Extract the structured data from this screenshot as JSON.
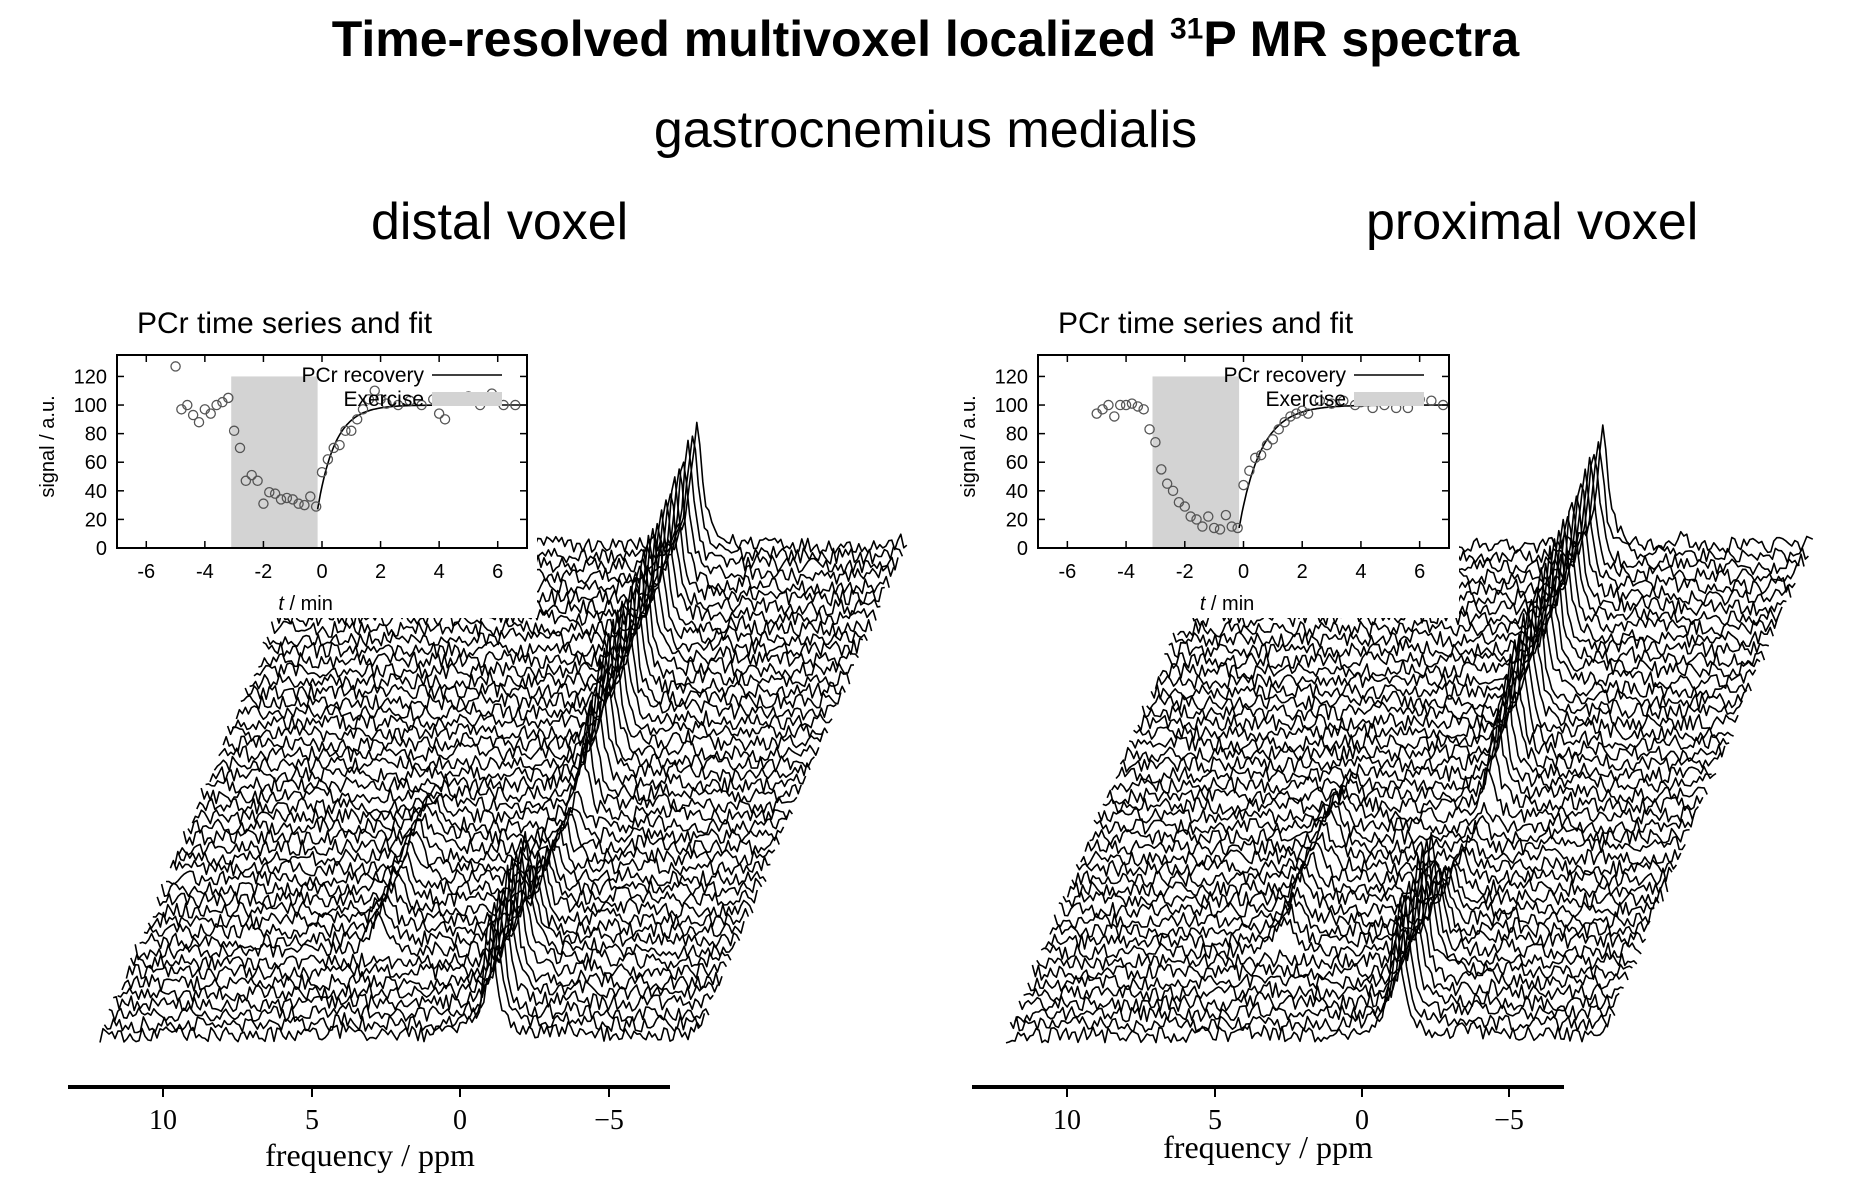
{
  "title": {
    "main": "Time-resolved multivoxel localized ",
    "superscript": "31",
    "suffix": "P MR spectra"
  },
  "subtitle": "gastrocnemius medialis",
  "colors": {
    "line": "#000000",
    "exercise_fill": "#d3d3d3",
    "marker": "#555555",
    "background": "#ffffff"
  },
  "chart_data": [
    {
      "type": "line",
      "panel_title": "distal voxel",
      "description_kind": "stacked spectra waterfall",
      "xlabel": "frequency / ppm",
      "x_ticks": [
        "10",
        "5",
        "0",
        "−5"
      ],
      "x_tick_values": [
        10,
        5,
        0,
        -5
      ],
      "xlim": [
        13,
        -7
      ],
      "spectra_count": 48,
      "peaks_ppm": {
        "PCr": 0,
        "Pi": 4.9
      },
      "inset": {
        "type": "scatter",
        "title": "PCr time series and fit",
        "xlabel": "t / min",
        "ylabel": "signal / a.u.",
        "xlim": [
          -7,
          7
        ],
        "ylim": [
          0,
          135
        ],
        "x_ticks": [
          "-6",
          "-4",
          "-2",
          "0",
          "2",
          "4",
          "6"
        ],
        "x_tick_values": [
          -6,
          -4,
          -2,
          0,
          2,
          4,
          6
        ],
        "y_ticks": [
          "0",
          "20",
          "40",
          "60",
          "80",
          "100",
          "120"
        ],
        "y_tick_values": [
          0,
          20,
          40,
          60,
          80,
          100,
          120
        ],
        "legend": [
          "PCr recovery",
          "Exercise"
        ],
        "exercise_interval": [
          -3.1,
          -0.15
        ],
        "fit": {
          "baseline": 100,
          "start": 27,
          "t0": -0.15,
          "tau": 0.6
        },
        "points": [
          [
            -5.0,
            127
          ],
          [
            -4.8,
            97
          ],
          [
            -4.6,
            100
          ],
          [
            -4.4,
            93
          ],
          [
            -4.2,
            88
          ],
          [
            -4.0,
            97
          ],
          [
            -3.8,
            94
          ],
          [
            -3.6,
            100
          ],
          [
            -3.4,
            102
          ],
          [
            -3.2,
            105
          ],
          [
            -3.0,
            82
          ],
          [
            -2.8,
            70
          ],
          [
            -2.6,
            47
          ],
          [
            -2.4,
            51
          ],
          [
            -2.2,
            47
          ],
          [
            -2.0,
            31
          ],
          [
            -1.8,
            39
          ],
          [
            -1.6,
            38
          ],
          [
            -1.4,
            34
          ],
          [
            -1.2,
            35
          ],
          [
            -1.0,
            34
          ],
          [
            -0.8,
            31
          ],
          [
            -0.6,
            30
          ],
          [
            -0.4,
            36
          ],
          [
            -0.2,
            29
          ],
          [
            0.0,
            53
          ],
          [
            0.2,
            62
          ],
          [
            0.4,
            70
          ],
          [
            0.6,
            72
          ],
          [
            0.8,
            82
          ],
          [
            1.0,
            82
          ],
          [
            1.2,
            90
          ],
          [
            1.4,
            97
          ],
          [
            1.6,
            104
          ],
          [
            1.8,
            110
          ],
          [
            2.0,
            104
          ],
          [
            2.2,
            101
          ],
          [
            2.6,
            100
          ],
          [
            3.0,
            103
          ],
          [
            3.4,
            100
          ],
          [
            3.8,
            104
          ],
          [
            4.0,
            94
          ],
          [
            4.2,
            90
          ],
          [
            4.6,
            103
          ],
          [
            5.0,
            106
          ],
          [
            5.4,
            100
          ],
          [
            5.8,
            108
          ],
          [
            6.2,
            100
          ],
          [
            6.6,
            100
          ]
        ]
      }
    },
    {
      "type": "line",
      "panel_title": "proximal voxel",
      "description_kind": "stacked spectra waterfall",
      "xlabel": "frequency / ppm",
      "x_ticks": [
        "10",
        "5",
        "0",
        "−5"
      ],
      "x_tick_values": [
        10,
        5,
        0,
        -5
      ],
      "xlim": [
        13,
        -7
      ],
      "spectra_count": 48,
      "peaks_ppm": {
        "PCr": 0,
        "Pi": 4.9
      },
      "inset": {
        "type": "scatter",
        "title": "PCr time series and fit",
        "xlabel": "t / min",
        "ylabel": "signal / a.u.",
        "xlim": [
          -7,
          7
        ],
        "ylim": [
          0,
          135
        ],
        "x_ticks": [
          "-6",
          "-4",
          "-2",
          "0",
          "2",
          "4",
          "6"
        ],
        "x_tick_values": [
          -6,
          -4,
          -2,
          0,
          2,
          4,
          6
        ],
        "y_ticks": [
          "0",
          "20",
          "40",
          "60",
          "80",
          "100",
          "120"
        ],
        "y_tick_values": [
          0,
          20,
          40,
          60,
          80,
          100,
          120
        ],
        "legend": [
          "PCr recovery",
          "Exercise"
        ],
        "exercise_interval": [
          -3.1,
          -0.15
        ],
        "fit": {
          "baseline": 100,
          "start": 14,
          "t0": -0.15,
          "tau": 0.75
        },
        "points": [
          [
            -5.0,
            94
          ],
          [
            -4.8,
            97
          ],
          [
            -4.6,
            100
          ],
          [
            -4.4,
            92
          ],
          [
            -4.2,
            100
          ],
          [
            -4.0,
            100
          ],
          [
            -3.8,
            101
          ],
          [
            -3.6,
            99
          ],
          [
            -3.4,
            97
          ],
          [
            -3.2,
            83
          ],
          [
            -3.0,
            74
          ],
          [
            -2.8,
            55
          ],
          [
            -2.6,
            45
          ],
          [
            -2.4,
            40
          ],
          [
            -2.2,
            32
          ],
          [
            -2.0,
            29
          ],
          [
            -1.8,
            22
          ],
          [
            -1.6,
            20
          ],
          [
            -1.4,
            15
          ],
          [
            -1.2,
            22
          ],
          [
            -1.0,
            14
          ],
          [
            -0.8,
            13
          ],
          [
            -0.6,
            23
          ],
          [
            -0.4,
            15
          ],
          [
            -0.2,
            14
          ],
          [
            0.0,
            44
          ],
          [
            0.2,
            54
          ],
          [
            0.4,
            63
          ],
          [
            0.6,
            65
          ],
          [
            0.8,
            72
          ],
          [
            1.0,
            76
          ],
          [
            1.2,
            83
          ],
          [
            1.4,
            88
          ],
          [
            1.6,
            92
          ],
          [
            1.8,
            94
          ],
          [
            2.0,
            96
          ],
          [
            2.2,
            94
          ],
          [
            2.6,
            103
          ],
          [
            3.0,
            101
          ],
          [
            3.4,
            103
          ],
          [
            3.8,
            100
          ],
          [
            4.0,
            102
          ],
          [
            4.4,
            98
          ],
          [
            4.8,
            100
          ],
          [
            5.2,
            98
          ],
          [
            5.6,
            98
          ],
          [
            6.0,
            104
          ],
          [
            6.4,
            103
          ],
          [
            6.8,
            100
          ]
        ]
      }
    }
  ]
}
